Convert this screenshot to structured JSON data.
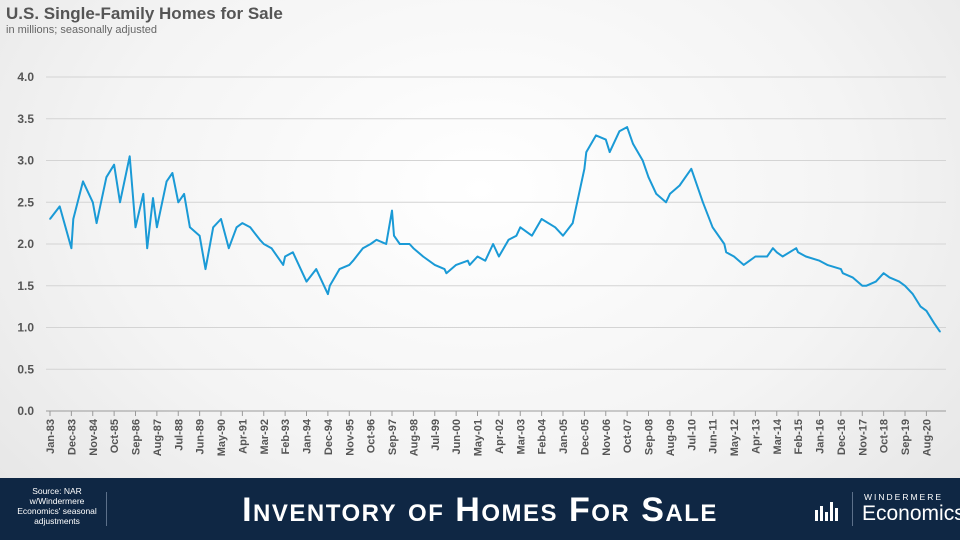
{
  "chart_data": {
    "type": "line",
    "title": "U.S. Single-Family Homes for Sale",
    "subtitle": "in millions; seasonally adjusted",
    "xlabel": "",
    "ylabel": "",
    "ylim": [
      0,
      4
    ],
    "yticks": [
      "0.0",
      "0.5",
      "1.0",
      "1.5",
      "2.0",
      "2.5",
      "3.0",
      "3.5",
      "4.0"
    ],
    "xticks": [
      "Jan-83",
      "Dec-83",
      "Nov-84",
      "Oct-85",
      "Sep-86",
      "Aug-87",
      "Jul-88",
      "Jun-89",
      "May-90",
      "Apr-91",
      "Mar-92",
      "Feb-93",
      "Jan-94",
      "Dec-94",
      "Nov-95",
      "Oct-96",
      "Sep-97",
      "Aug-98",
      "Jul-99",
      "Jun-00",
      "May-01",
      "Apr-02",
      "Mar-03",
      "Feb-04",
      "Jan-05",
      "Dec-05",
      "Nov-06",
      "Oct-07",
      "Sep-08",
      "Aug-09",
      "Jul-10",
      "Jun-11",
      "May-12",
      "Apr-13",
      "Mar-14",
      "Feb-15",
      "Jan-16",
      "Dec-16",
      "Nov-17",
      "Oct-18",
      "Sep-19",
      "Aug-20"
    ],
    "grid": true,
    "legend": "none",
    "color": "#1a9ad6",
    "series": [
      {
        "x": [
          "1983-01",
          "1983-06",
          "1983-12",
          "1984-01",
          "1984-06",
          "1984-11",
          "1985-01",
          "1985-06",
          "1985-10",
          "1986-01",
          "1986-06",
          "1986-09",
          "1987-01",
          "1987-03",
          "1987-06",
          "1987-08",
          "1988-01",
          "1988-04",
          "1988-07",
          "1988-10",
          "1989-01",
          "1989-06",
          "1989-09",
          "1990-01",
          "1990-05",
          "1990-09",
          "1991-01",
          "1991-04",
          "1991-08",
          "1992-01",
          "1992-03",
          "1992-07",
          "1993-01",
          "1993-02",
          "1993-06",
          "1994-01",
          "1994-06",
          "1994-12",
          "1995-01",
          "1995-06",
          "1995-11",
          "1996-01",
          "1996-06",
          "1996-10",
          "1997-01",
          "1997-06",
          "1997-09",
          "1997-10",
          "1998-01",
          "1998-06",
          "1998-08",
          "1999-01",
          "1999-07",
          "1999-12",
          "2000-01",
          "2000-06",
          "2000-12",
          "2001-01",
          "2001-05",
          "2001-09",
          "2002-01",
          "2002-04",
          "2002-09",
          "2003-01",
          "2003-03",
          "2003-09",
          "2004-02",
          "2004-09",
          "2005-01",
          "2005-06",
          "2005-12",
          "2006-01",
          "2006-06",
          "2006-11",
          "2007-01",
          "2007-06",
          "2007-10",
          "2008-01",
          "2008-06",
          "2008-09",
          "2009-01",
          "2009-06",
          "2009-08",
          "2010-01",
          "2010-04",
          "2010-07",
          "2011-01",
          "2011-06",
          "2011-12",
          "2012-01",
          "2012-05",
          "2012-10",
          "2013-01",
          "2013-04",
          "2013-10",
          "2014-01",
          "2014-03",
          "2014-06",
          "2015-01",
          "2015-02",
          "2015-06",
          "2016-01",
          "2016-05",
          "2016-12",
          "2017-01",
          "2017-06",
          "2017-11",
          "2018-01",
          "2018-06",
          "2018-10",
          "2019-01",
          "2019-06",
          "2019-09",
          "2020-01",
          "2020-05",
          "2020-08",
          "2020-12",
          "2021-03"
        ],
        "y": [
          2.3,
          2.45,
          1.95,
          2.3,
          2.75,
          2.5,
          2.25,
          2.8,
          2.95,
          2.5,
          3.05,
          2.2,
          2.6,
          1.95,
          2.55,
          2.2,
          2.75,
          2.85,
          2.5,
          2.6,
          2.2,
          2.1,
          1.7,
          2.2,
          2.3,
          1.95,
          2.2,
          2.25,
          2.2,
          2.05,
          2.0,
          1.95,
          1.75,
          1.85,
          1.9,
          1.55,
          1.7,
          1.4,
          1.5,
          1.7,
          1.75,
          1.8,
          1.95,
          2.0,
          2.05,
          2.0,
          2.4,
          2.1,
          2.0,
          2.0,
          1.95,
          1.85,
          1.75,
          1.7,
          1.65,
          1.75,
          1.8,
          1.75,
          1.85,
          1.8,
          2.0,
          1.85,
          2.05,
          2.1,
          2.2,
          2.1,
          2.3,
          2.2,
          2.1,
          2.25,
          2.9,
          3.1,
          3.3,
          3.25,
          3.1,
          3.35,
          3.4,
          3.2,
          3.0,
          2.8,
          2.6,
          2.5,
          2.6,
          2.7,
          2.8,
          2.9,
          2.5,
          2.2,
          2.0,
          1.9,
          1.85,
          1.75,
          1.8,
          1.85,
          1.85,
          1.95,
          1.9,
          1.85,
          1.95,
          1.9,
          1.85,
          1.8,
          1.75,
          1.7,
          1.65,
          1.6,
          1.5,
          1.5,
          1.55,
          1.65,
          1.6,
          1.55,
          1.5,
          1.4,
          1.25,
          1.2,
          1.05,
          0.95
        ]
      }
    ]
  },
  "footer": {
    "source": "Source: NAR w/Windermere Economics' seasonal adjustments",
    "banner_title": "Inventory of Homes For Sale",
    "brand_top": "WINDERMERE",
    "brand_bottom": "Economics",
    "logo_icon": "bar-chart-logo-icon"
  }
}
